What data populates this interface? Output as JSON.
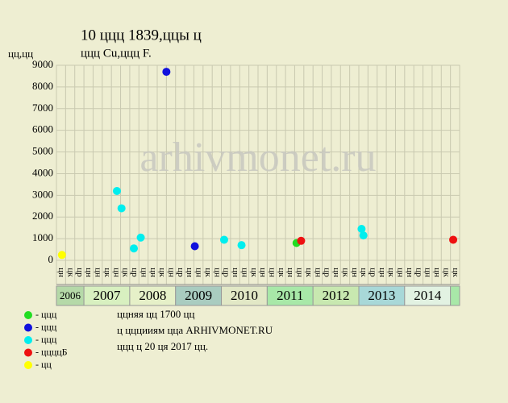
{
  "chart_data": {
    "type": "scatter",
    "title": "10 ццц 1839,ццы ц",
    "subtitle": "ццц Cu,ццц F.",
    "y_label": "цц,цц",
    "watermark": "arhivmonet.ru",
    "xlim": [
      0,
      44
    ],
    "ylim": [
      0,
      9000
    ],
    "yticks": [
      0,
      1000,
      2000,
      3000,
      4000,
      5000,
      6000,
      7000,
      8000,
      9000
    ],
    "grid": true,
    "column_labels": [
      "цн",
      "цк",
      "цр",
      "цн",
      "цн",
      "цк",
      "цн",
      "цк",
      "цр",
      "цн",
      "цн",
      "цк",
      "цн",
      "цр",
      "цн",
      "цн",
      "цк",
      "цн",
      "цр",
      "цн",
      "цн",
      "цк",
      "цн",
      "цн",
      "цк",
      "цн",
      "цн",
      "цк",
      "цн",
      "цр",
      "цн",
      "цк",
      "цн",
      "цк",
      "цр",
      "цн",
      "цк",
      "цн",
      "цн",
      "цр",
      "цн",
      "цн",
      "цк",
      "цк"
    ],
    "years": [
      {
        "label": "2006",
        "start": 0,
        "end": 3,
        "color": "#b5d9a8"
      },
      {
        "label": "2007",
        "start": 3,
        "end": 8,
        "color": "#d8f0c0"
      },
      {
        "label": "2008",
        "start": 8,
        "end": 13,
        "color": "#e6f0c8"
      },
      {
        "label": "2009",
        "start": 13,
        "end": 18,
        "color": "#a9ccc0"
      },
      {
        "label": "2010",
        "start": 18,
        "end": 23,
        "color": "#e2e8c6"
      },
      {
        "label": "2011",
        "start": 23,
        "end": 28,
        "color": "#a8e8a8"
      },
      {
        "label": "2012",
        "start": 28,
        "end": 33,
        "color": "#c8e8b0"
      },
      {
        "label": "2013",
        "start": 33,
        "end": 38,
        "color": "#a8d8d8"
      },
      {
        "label": "2014",
        "start": 38,
        "end": 43,
        "color": "#e2f2e2"
      },
      {
        "label": null,
        "start": 43,
        "end": 44,
        "color": "#a8e8a8"
      }
    ],
    "series": [
      {
        "name": "- ццц",
        "color": "#22dd22",
        "x": [
          26.2
        ],
        "values": [
          800
        ]
      },
      {
        "name": "- ццц",
        "color": "#1111dd",
        "x": [
          12.0,
          15.1
        ],
        "values": [
          8700,
          650
        ]
      },
      {
        "name": "- ццц",
        "color": "#00eeee",
        "x": [
          6.6,
          7.1,
          8.45,
          9.2,
          18.3,
          20.2,
          33.3,
          33.5
        ],
        "values": [
          3200,
          2400,
          550,
          1050,
          950,
          700,
          1450,
          1150
        ]
      },
      {
        "name": "- ццццБ",
        "color": "#ee1111",
        "x": [
          26.7,
          43.3
        ],
        "values": [
          900,
          950
        ]
      },
      {
        "name": "- цц",
        "color": "#ffff00",
        "x": [
          0.6
        ],
        "values": [
          250
        ]
      }
    ],
    "notes": [
      "ццняя цц 1700 цц",
      "ц цццииям цца ARHIVMONET.RU",
      "ццц ц 20 ця 2017 цц."
    ]
  }
}
